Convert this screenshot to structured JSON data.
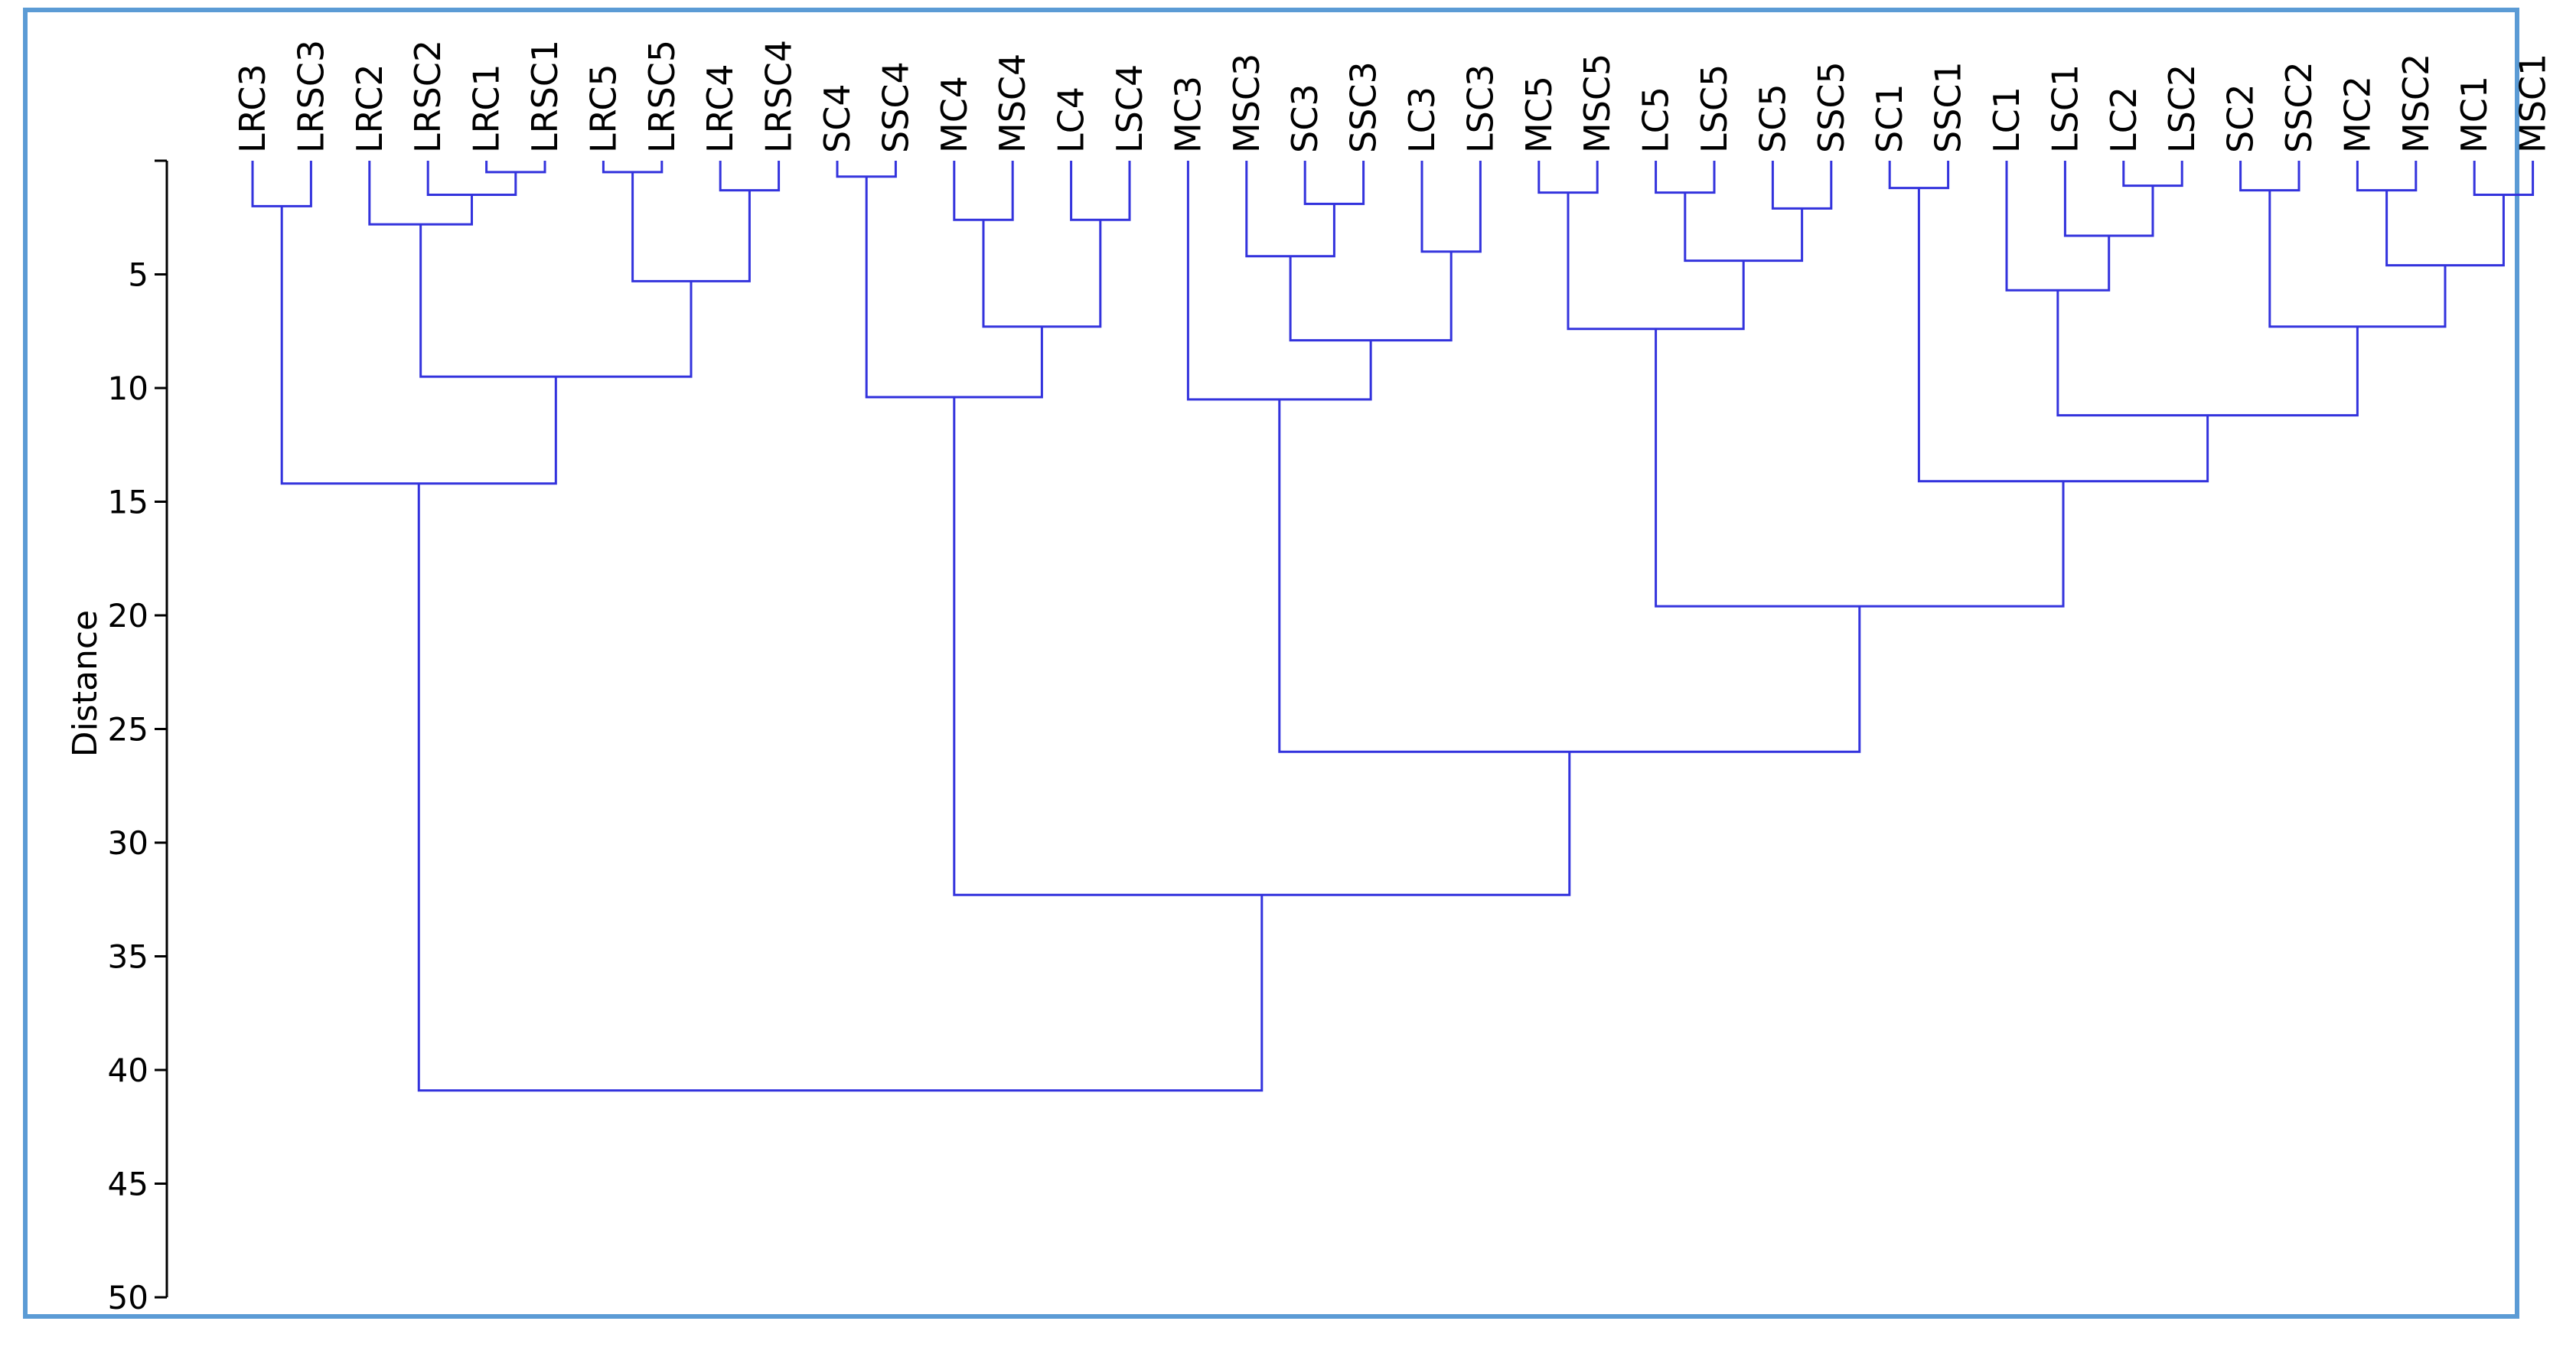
{
  "chart_data": {
    "type": "dendrogram",
    "ylabel": "Distance",
    "xlabel": "",
    "ylim": [
      0,
      50
    ],
    "yticks": [
      5,
      10,
      15,
      20,
      25,
      30,
      35,
      40,
      45,
      50
    ],
    "y_inverted": true,
    "link_color": "#3333dd",
    "leaves": [
      "LRC3",
      "LRSC3",
      "LRC2",
      "LRSC2",
      "LRC1",
      "LRSC1",
      "LRC5",
      "LRSC5",
      "LRC4",
      "LRSC4",
      "SC4",
      "SSC4",
      "MC4",
      "MSC4",
      "LC4",
      "LSC4",
      "MC3",
      "MSC3",
      "SC3",
      "SSC3",
      "LC3",
      "LSC3",
      "MC5",
      "MSC5",
      "LC5",
      "LSC5",
      "SC5",
      "SSC5",
      "SC1",
      "SSC1",
      "LC1",
      "LSC1",
      "LC2",
      "LSC2",
      "SC2",
      "SSC2",
      "MC2",
      "MSC2",
      "MC1",
      "MSC1"
    ],
    "merges": [
      {
        "left": "L:LRC3",
        "right": "L:LRSC3",
        "height": 2.0
      },
      {
        "left": "L:LRC1",
        "right": "L:LRSC1",
        "height": 0.5
      },
      {
        "left": "L:LRSC2",
        "right": 1,
        "height": 1.5
      },
      {
        "left": "L:LRC2",
        "right": 2,
        "height": 2.8
      },
      {
        "left": "L:LRC5",
        "right": "L:LRSC5",
        "height": 0.5
      },
      {
        "left": "L:LRC4",
        "right": "L:LRSC4",
        "height": 1.3
      },
      {
        "left": 4,
        "right": 5,
        "height": 5.3
      },
      {
        "left": 3,
        "right": 6,
        "height": 9.5
      },
      {
        "left": 0,
        "right": 7,
        "height": 14.2
      },
      {
        "left": "L:SC4",
        "right": "L:SSC4",
        "height": 0.7
      },
      {
        "left": "L:MC4",
        "right": "L:MSC4",
        "height": 2.6
      },
      {
        "left": "L:LC4",
        "right": "L:LSC4",
        "height": 2.6
      },
      {
        "left": 10,
        "right": 11,
        "height": 7.3
      },
      {
        "left": 9,
        "right": 12,
        "height": 10.4
      },
      {
        "left": "L:SC3",
        "right": "L:SSC3",
        "height": 1.9
      },
      {
        "left": "L:MSC3",
        "right": 14,
        "height": 4.2
      },
      {
        "left": "L:LC3",
        "right": "L:LSC3",
        "height": 4.0
      },
      {
        "left": 15,
        "right": 16,
        "height": 7.9
      },
      {
        "left": "L:MC3",
        "right": 17,
        "height": 10.5
      },
      {
        "left": "L:MC5",
        "right": "L:MSC5",
        "height": 1.4
      },
      {
        "left": "L:LC5",
        "right": "L:LSC5",
        "height": 1.4
      },
      {
        "left": "L:SC5",
        "right": "L:SSC5",
        "height": 2.1
      },
      {
        "left": 20,
        "right": 21,
        "height": 4.4
      },
      {
        "left": 19,
        "right": 22,
        "height": 7.4
      },
      {
        "left": "L:SC1",
        "right": "L:SSC1",
        "height": 1.2
      },
      {
        "left": "L:LC2",
        "right": "L:LSC2",
        "height": 1.1
      },
      {
        "left": "L:LSC1",
        "right": 25,
        "height": 3.3
      },
      {
        "left": "L:LC1",
        "right": 26,
        "height": 5.7
      },
      {
        "left": "L:SC2",
        "right": "L:SSC2",
        "height": 1.3
      },
      {
        "left": "L:MC2",
        "right": "L:MSC2",
        "height": 1.3
      },
      {
        "left": "L:MC1",
        "right": "L:MSC1",
        "height": 1.5
      },
      {
        "left": 29,
        "right": 30,
        "height": 4.6
      },
      {
        "left": 28,
        "right": 31,
        "height": 7.3
      },
      {
        "left": 27,
        "right": 32,
        "height": 11.2
      },
      {
        "left": 24,
        "right": 33,
        "height": 14.1
      },
      {
        "left": 23,
        "right": 34,
        "height": 19.6
      },
      {
        "left": 18,
        "right": 35,
        "height": 26.0
      },
      {
        "left": 13,
        "right": 36,
        "height": 32.3
      },
      {
        "left": 8,
        "right": 37,
        "height": 40.9
      }
    ]
  }
}
